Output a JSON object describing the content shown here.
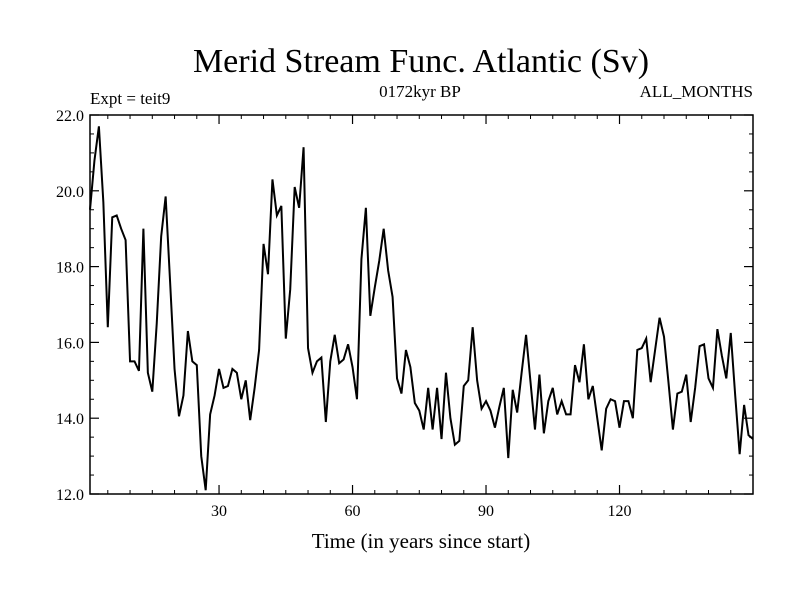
{
  "chart_data": {
    "type": "line",
    "title": "Merid Stream Func. Atlantic (Sv)",
    "subtitle_left": "Expt = teit9",
    "subtitle_center": "0172kyr BP",
    "subtitle_right": "ALL_MONTHS",
    "xlabel": "Time (in years since start)",
    "ylabel": "",
    "xlim": [
      1,
      150
    ],
    "ylim": [
      12.0,
      22.0
    ],
    "x_ticks": [
      30,
      60,
      90,
      120
    ],
    "x_tick_labels": [
      "30",
      "60",
      "90",
      "120"
    ],
    "y_ticks": [
      12.0,
      14.0,
      16.0,
      18.0,
      20.0,
      22.0
    ],
    "y_tick_labels": [
      "12.0",
      "14.0",
      "16.0",
      "18.0",
      "20.0",
      "22.0"
    ],
    "grid": false,
    "series": [
      {
        "name": "Merid Stream Func. Atlantic",
        "color": "#000000",
        "x_start": 1,
        "x_step": 1,
        "values": [
          19.5,
          20.8,
          21.7,
          19.7,
          16.4,
          19.3,
          19.35,
          19.0,
          18.7,
          15.5,
          15.5,
          15.25,
          19.0,
          15.2,
          14.7,
          16.5,
          18.8,
          19.85,
          17.6,
          15.3,
          14.05,
          14.6,
          16.3,
          15.5,
          15.4,
          13.0,
          12.1,
          14.1,
          14.6,
          15.3,
          14.8,
          14.85,
          15.3,
          15.2,
          14.5,
          15.0,
          13.95,
          14.8,
          15.8,
          18.6,
          17.8,
          20.3,
          19.35,
          19.6,
          16.1,
          17.4,
          20.1,
          19.55,
          21.15,
          15.85,
          15.2,
          15.5,
          15.6,
          13.9,
          15.5,
          16.2,
          15.45,
          15.55,
          15.95,
          15.35,
          14.5,
          18.2,
          19.55,
          16.7,
          17.45,
          18.15,
          19.0,
          17.9,
          17.2,
          15.05,
          14.65,
          15.8,
          15.35,
          14.4,
          14.2,
          13.7,
          14.8,
          13.7,
          14.8,
          13.45,
          15.2,
          14.0,
          13.3,
          13.4,
          14.85,
          15.0,
          16.4,
          15.0,
          14.25,
          14.45,
          14.2,
          13.75,
          14.3,
          14.8,
          12.95,
          14.75,
          14.15,
          15.2,
          16.2,
          14.95,
          13.7,
          15.15,
          13.6,
          14.45,
          14.8,
          14.1,
          14.45,
          14.1,
          14.1,
          15.4,
          14.95,
          15.95,
          14.5,
          14.85,
          14.0,
          13.15,
          14.25,
          14.5,
          14.45,
          13.75,
          14.45,
          14.45,
          14.0,
          15.8,
          15.85,
          16.1,
          14.95,
          15.8,
          16.65,
          16.15,
          14.95,
          13.7,
          14.65,
          14.7,
          15.15,
          13.9,
          14.8,
          15.9,
          15.95,
          15.05,
          14.8,
          16.35,
          15.65,
          15.05,
          16.25,
          14.6,
          13.05,
          14.35,
          13.55,
          13.45
        ]
      }
    ]
  }
}
